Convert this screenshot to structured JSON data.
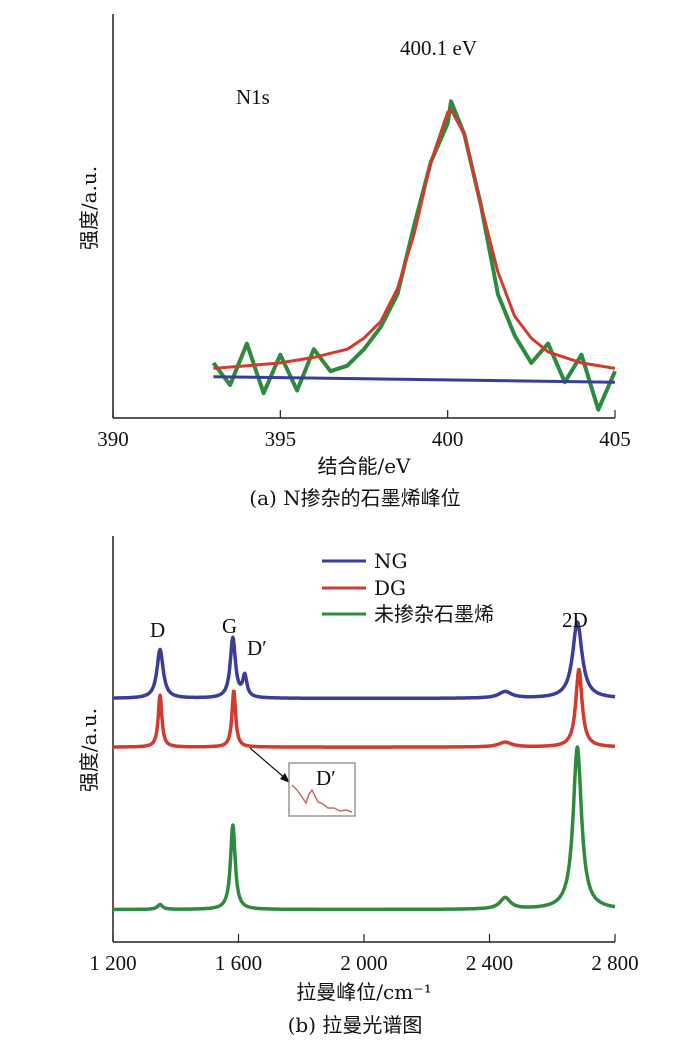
{
  "chart_data": [
    {
      "type": "line",
      "caption": "(a) N掺杂的石墨烯峰位",
      "title": "",
      "xlabel": "结合能/eV",
      "ylabel": "强度/a.u.",
      "xlim": [
        390,
        405
      ],
      "x_ticks": [
        "390",
        "395",
        "400",
        "405"
      ],
      "x_tick_values": [
        390,
        395,
        400,
        405
      ],
      "annotations": [
        "N1s",
        "400.1 eV"
      ],
      "peak_center": 400.1,
      "series": [
        {
          "color": "#2e8b3e",
          "x": [
            393.0,
            393.5,
            394.0,
            394.5,
            395.0,
            395.5,
            396.0,
            396.5,
            397.0,
            397.5,
            398.0,
            398.5,
            399.0,
            399.5,
            400.0,
            400.1,
            400.5,
            401.0,
            401.5,
            402.0,
            402.5,
            403.0,
            403.5,
            404.0,
            404.5,
            405.0
          ],
          "y": [
            0.05,
            -0.03,
            0.12,
            -0.06,
            0.08,
            -0.05,
            0.1,
            0.02,
            0.04,
            0.1,
            0.18,
            0.3,
            0.55,
            0.78,
            0.92,
            1.0,
            0.88,
            0.62,
            0.3,
            0.15,
            0.05,
            0.12,
            -0.02,
            0.08,
            -0.12,
            0.02
          ]
        },
        {
          "color": "#d23a2e",
          "x": [
            393.0,
            394.0,
            395.0,
            396.0,
            397.0,
            397.5,
            398.0,
            398.5,
            399.0,
            399.5,
            400.0,
            400.1,
            400.5,
            401.0,
            401.5,
            402.0,
            402.5,
            403.0,
            404.0,
            405.0
          ],
          "y": [
            0.03,
            0.04,
            0.05,
            0.07,
            0.1,
            0.14,
            0.2,
            0.32,
            0.52,
            0.78,
            0.96,
            0.97,
            0.88,
            0.62,
            0.38,
            0.22,
            0.14,
            0.09,
            0.05,
            0.03
          ]
        },
        {
          "color": "#3b3e99",
          "x": [
            393.0,
            405.0
          ],
          "y": [
            0.0,
            -0.02
          ]
        }
      ],
      "ylim": [
        -0.15,
        1.15
      ]
    },
    {
      "type": "line",
      "caption": "(b) 拉曼光谱图",
      "title": "",
      "xlabel": "拉曼峰位/cm⁻¹",
      "ylabel": "强度/a.u.",
      "xlim": [
        1200,
        2800
      ],
      "x_ticks": [
        "1 200",
        "1 600",
        "2 000",
        "2 400",
        "2 800"
      ],
      "x_tick_values": [
        1200,
        1600,
        2000,
        2400,
        2800
      ],
      "legend": [
        "NG",
        "DG",
        "未掺杂石墨烯"
      ],
      "legend_position": "top-center",
      "peak_labels": [
        "D",
        "G",
        "D′",
        "2D"
      ],
      "inset_label": "D′",
      "series": [
        {
          "name": "NG",
          "color": "#3b3e99",
          "peaks": [
            [
              1350,
              0.3,
              12
            ],
            [
              1582,
              0.37,
              10
            ],
            [
              1620,
              0.13,
              8
            ],
            [
              2450,
              0.04,
              25
            ],
            [
              2680,
              0.47,
              18
            ]
          ]
        },
        {
          "name": "DG",
          "color": "#d23a2e",
          "peaks": [
            [
              1350,
              0.32,
              7
            ],
            [
              1585,
              0.35,
              7
            ],
            [
              2450,
              0.03,
              25
            ],
            [
              2685,
              0.48,
              12
            ]
          ]
        },
        {
          "name": "未掺杂石墨烯",
          "color": "#2e8b3e",
          "peaks": [
            [
              1350,
              0.03,
              10
            ],
            [
              1582,
              0.52,
              9
            ],
            [
              2450,
              0.07,
              20
            ],
            [
              2680,
              1.0,
              16
            ]
          ]
        }
      ],
      "offsets": [
        1.3,
        1.0,
        0.0
      ],
      "ylim": [
        -0.2,
        2.3
      ]
    }
  ]
}
